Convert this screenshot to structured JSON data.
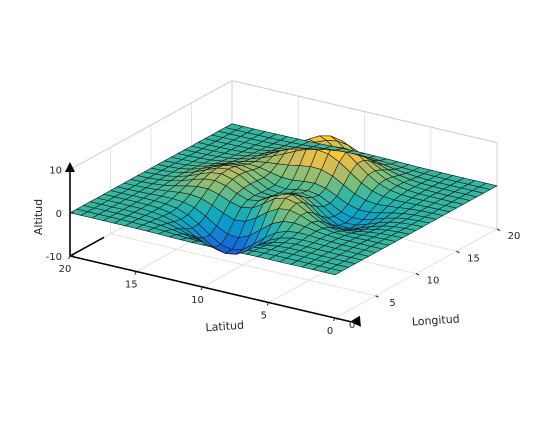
{
  "chart_data": {
    "type": "surface",
    "function": "peaks",
    "x_label": "Latitud",
    "y_label": "Longitud",
    "z_label": "Altitud",
    "x_range": [
      0,
      20
    ],
    "y_range": [
      0,
      20
    ],
    "z_range": [
      -10,
      10
    ],
    "x_ticks": [
      0,
      5,
      10,
      15,
      20
    ],
    "y_ticks": [
      0,
      5,
      10,
      15,
      20
    ],
    "z_ticks": [
      -10,
      0,
      10
    ],
    "grid_points": 25,
    "grid": true,
    "colormap": "parula",
    "colormap_stops": [
      "#352a87",
      "#0f5cdd",
      "#1481d6",
      "#06a4ca",
      "#2eb7a4",
      "#87bf77",
      "#d1bb59",
      "#fec832",
      "#f9fb0e"
    ],
    "arrow_color": "#000000"
  }
}
